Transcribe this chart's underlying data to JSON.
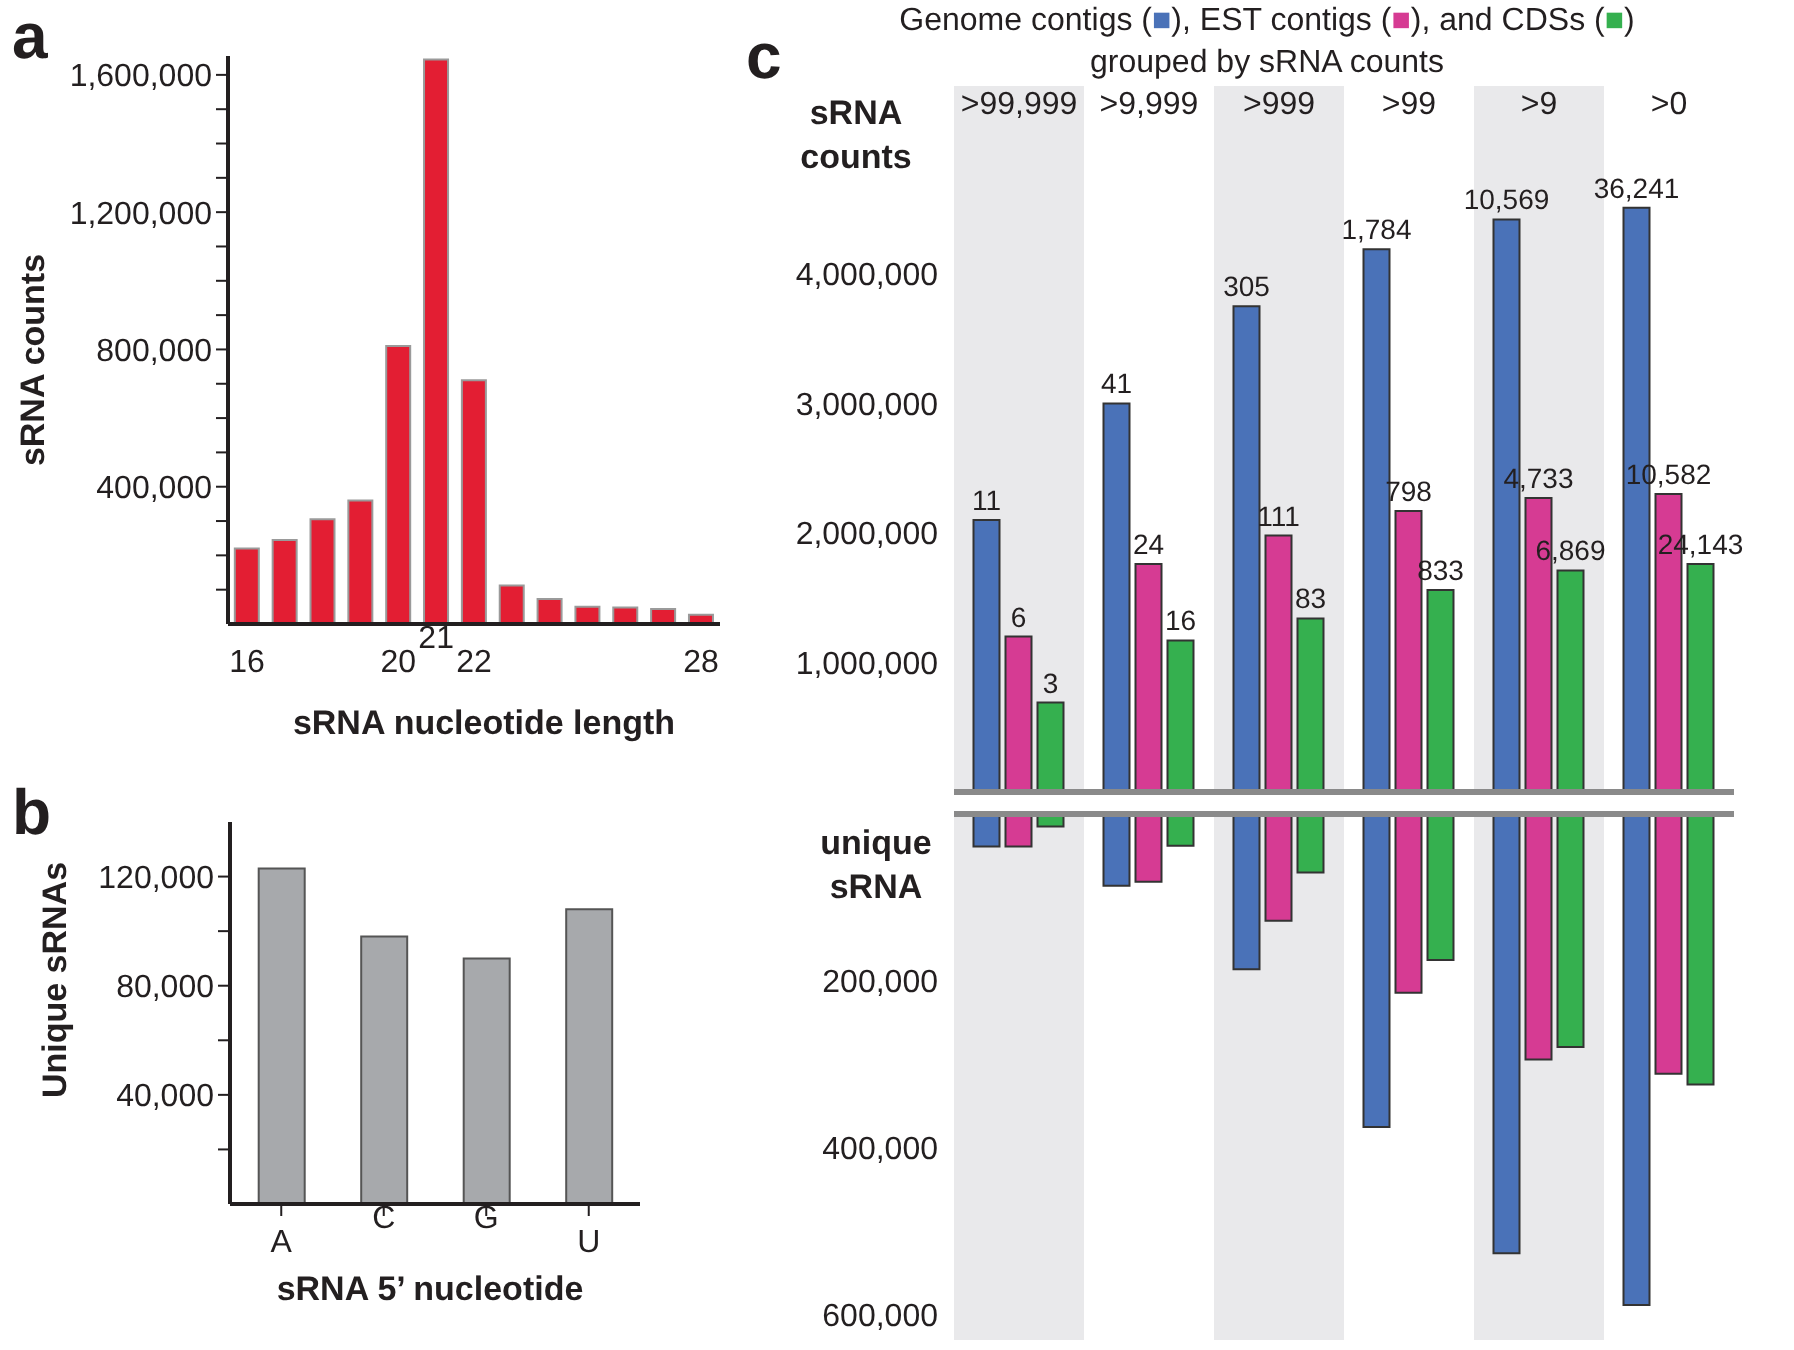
{
  "chart_data": [
    {
      "type": "bar",
      "annotations": [
        "a"
      ],
      "xlabel": "sRNA nucleotide length",
      "ylabel": "sRNA counts",
      "categories": [
        "16",
        null,
        null,
        null,
        "20",
        "21",
        "22",
        null,
        null,
        null,
        null,
        null,
        "28"
      ],
      "values": [
        220000,
        245000,
        305000,
        360000,
        810000,
        1645000,
        710000,
        112000,
        73000,
        50000,
        48000,
        44000,
        27000
      ],
      "color": "#e31e33",
      "ylim": [
        0,
        1655000
      ],
      "yticks": [
        {
          "value": 100000,
          "label": null
        },
        {
          "value": 200000,
          "label": null
        },
        {
          "value": 300000,
          "label": null
        },
        {
          "value": 400000,
          "label": "400,000"
        },
        {
          "value": 500000,
          "label": null
        },
        {
          "value": 600000,
          "label": null
        },
        {
          "value": 700000,
          "label": null
        },
        {
          "value": 800000,
          "label": "800,000"
        },
        {
          "value": 900000,
          "label": null
        },
        {
          "value": 1000000,
          "label": null
        },
        {
          "value": 1100000,
          "label": null
        },
        {
          "value": 1200000,
          "label": "1,200,000"
        },
        {
          "value": 1300000,
          "label": null
        },
        {
          "value": 1400000,
          "label": null
        },
        {
          "value": 1500000,
          "label": null
        },
        {
          "value": 1600000,
          "label": "1,600,000"
        }
      ]
    },
    {
      "type": "bar",
      "annotations": [
        "b"
      ],
      "xlabel": "sRNA 5’ nucleotide",
      "ylabel": "Unique sRNAs",
      "categories": [
        "A",
        "C",
        "G",
        "U"
      ],
      "values": [
        123000,
        98000,
        90000,
        108000
      ],
      "color": "#a7a9ac",
      "ylim": [
        0,
        140000
      ],
      "yticks": [
        {
          "value": 20000,
          "label": null
        },
        {
          "value": 40000,
          "label": "40,000"
        },
        {
          "value": 60000,
          "label": null
        },
        {
          "value": 80000,
          "label": "80,000"
        },
        {
          "value": 100000,
          "label": null
        },
        {
          "value": 120000,
          "label": "120,000"
        }
      ]
    },
    {
      "type": "bar",
      "title": "Genome contigs (■), EST contigs (■), and CDSs (■)",
      "subtitle": "grouped by sRNA counts",
      "ylabel": "sRNA counts",
      "categories": [
        ">99,999",
        ">9,999",
        ">999",
        ">99",
        ">9",
        ">0"
      ],
      "series": [
        {
          "color": "#4a72b8",
          "values": [
            2100000,
            3000000,
            3750000,
            4190000,
            4420000,
            4510000
          ]
        },
        {
          "color": "#d63b93",
          "values": [
            1200000,
            1760000,
            1980000,
            2170000,
            2270000,
            2300000
          ]
        },
        {
          "color": "#35b04f",
          "values": [
            690000,
            1170000,
            1340000,
            1560000,
            1710000,
            1760000
          ]
        }
      ],
      "annotations": [
        "c",
        "11",
        "41",
        "305",
        "1,784",
        "10,569",
        "36,241",
        "6",
        "24",
        "111",
        "798",
        "4,733",
        "10,582",
        "3",
        "16",
        "83",
        "833",
        "6,869",
        "24,143"
      ],
      "ylim": [
        0,
        5450000
      ],
      "yticks": [
        {
          "value": 1000000,
          "label": "1,000,000"
        },
        {
          "value": 2000000,
          "label": "2,000,000"
        },
        {
          "value": 3000000,
          "label": "3,000,000"
        },
        {
          "value": 4000000,
          "label": "4,000,000"
        }
      ],
      "bands": [
        {
          "axis": "x",
          "from": ">99,999",
          "to": ">99,999",
          "color": "#e9e9eb"
        },
        {
          "axis": "x",
          "from": ">999",
          "to": ">999",
          "color": "#e9e9eb"
        },
        {
          "axis": "x",
          "from": ">9",
          "to": ">9",
          "color": "#e9e9eb"
        }
      ]
    },
    {
      "type": "bar",
      "ylabel": "unique sRNA",
      "tick_labels": "y",
      "categories": [
        ">99,999",
        ">9,999",
        ">999",
        ">99",
        ">9",
        ">0"
      ],
      "series": [
        {
          "color": "#4a72b8",
          "values": [
            39000,
            86000,
            186000,
            375000,
            526000,
            588000
          ]
        },
        {
          "color": "#d63b93",
          "values": [
            39000,
            81000,
            128000,
            214000,
            294000,
            311000
          ]
        },
        {
          "color": "#35b04f",
          "values": [
            15000,
            38000,
            70000,
            175000,
            279000,
            324000
          ]
        }
      ],
      "ylim": [
        630000,
        0
      ],
      "yticks": [
        {
          "value": 200000,
          "label": "200,000"
        },
        {
          "value": 400000,
          "label": "400,000"
        },
        {
          "value": 600000,
          "label": "600,000"
        }
      ],
      "bands": [
        {
          "axis": "x",
          "from": ">99,999",
          "to": ">99,999",
          "color": "#e9e9eb"
        },
        {
          "axis": "x",
          "from": ">999",
          "to": ">999",
          "color": "#e9e9eb"
        },
        {
          "axis": "x",
          "from": ">9",
          "to": ">9",
          "color": "#e9e9eb"
        }
      ]
    }
  ]
}
